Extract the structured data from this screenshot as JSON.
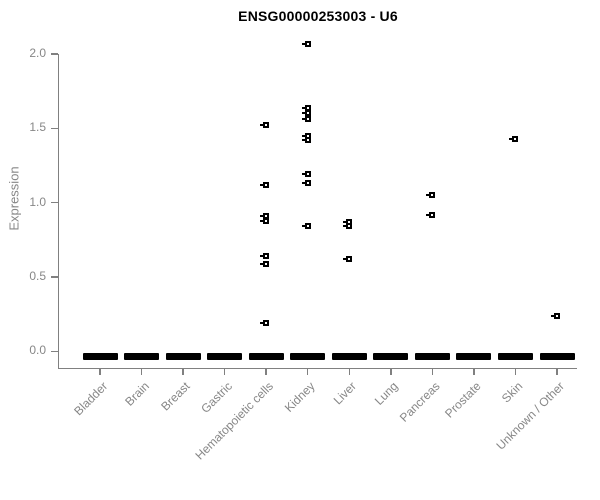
{
  "title": "ENSG00000253003 - U6",
  "chart_data": {
    "type": "scatter",
    "title": "ENSG00000253003 - U6",
    "xlabel": "",
    "ylabel": "Expression",
    "ylim": [
      0,
      2.0
    ],
    "grid": false,
    "legend": false,
    "marker": "open-square",
    "marker_color": "#000000",
    "axis_color": "#808080",
    "label_color": "#878787",
    "yticks": [
      {
        "value": 0.0,
        "label": "0.0"
      },
      {
        "value": 0.5,
        "label": "0.5"
      },
      {
        "value": 1.0,
        "label": "1.0"
      },
      {
        "value": 1.5,
        "label": "1.5"
      },
      {
        "value": 2.0,
        "label": "2.0"
      }
    ],
    "zero_cluster_note": "thick black bar = many overlapping samples at expression 0",
    "series": [
      {
        "name": "Bladder",
        "values": [],
        "zero_cluster": true
      },
      {
        "name": "Brain",
        "values": [],
        "zero_cluster": true
      },
      {
        "name": "Breast",
        "values": [],
        "zero_cluster": true
      },
      {
        "name": "Gastric",
        "values": [],
        "zero_cluster": true
      },
      {
        "name": "Hematopoietic cells",
        "values": [
          1.52,
          1.12,
          0.91,
          0.88,
          0.64,
          0.59,
          0.19
        ],
        "zero_cluster": true
      },
      {
        "name": "Kidney",
        "values": [
          2.07,
          1.64,
          1.6,
          1.56,
          1.45,
          1.42,
          1.19,
          1.13,
          0.84
        ],
        "zero_cluster": true
      },
      {
        "name": "Liver",
        "values": [
          0.87,
          0.84,
          0.62
        ],
        "zero_cluster": true
      },
      {
        "name": "Lung",
        "values": [],
        "zero_cluster": true
      },
      {
        "name": "Pancreas",
        "values": [
          1.05,
          0.92
        ],
        "zero_cluster": true
      },
      {
        "name": "Prostate",
        "values": [],
        "zero_cluster": true
      },
      {
        "name": "Skin",
        "values": [
          1.43
        ],
        "zero_cluster": true
      },
      {
        "name": "Unknown / Other",
        "values": [
          0.24
        ],
        "zero_cluster": true
      }
    ]
  }
}
